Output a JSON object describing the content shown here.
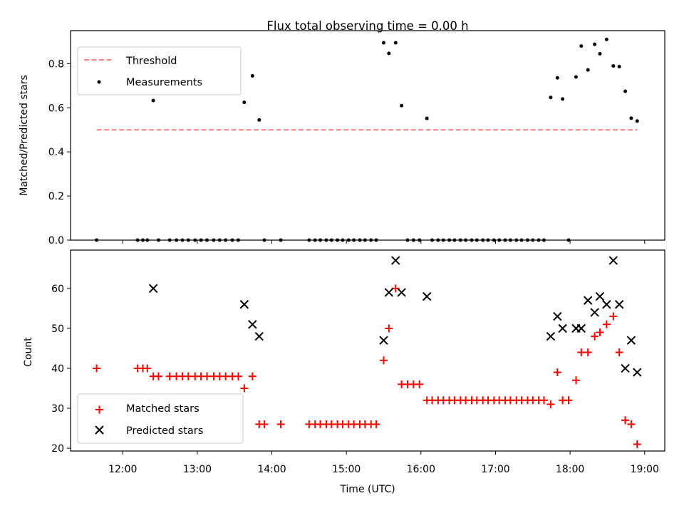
{
  "chart_data": [
    {
      "type": "scatter",
      "title": "Flux total observing time = 0.00 h",
      "ylabel": "Matched/Predicted stars",
      "xlabel": "",
      "xlim": [
        11.3,
        19.27
      ],
      "ylim": [
        0.0,
        0.95
      ],
      "yticks": [
        0.0,
        0.2,
        0.4,
        0.6,
        0.8
      ],
      "ytick_labels": [
        "0.0",
        "0.2",
        "0.4",
        "0.6",
        "0.8"
      ],
      "grid": false,
      "legend": "top-left",
      "threshold": {
        "name": "Threshold",
        "value": 0.5,
        "x": [
          11.65,
          18.9
        ],
        "color": "#ff7f7f"
      },
      "series": [
        {
          "name": "Measurements",
          "color": "#000000",
          "points": [
            [
              11.65,
              0
            ],
            [
              12.2,
              0
            ],
            [
              12.27,
              0
            ],
            [
              12.33,
              0
            ],
            [
              12.41,
              0.633
            ],
            [
              12.48,
              0
            ],
            [
              12.63,
              0
            ],
            [
              12.72,
              0
            ],
            [
              12.8,
              0
            ],
            [
              12.88,
              0
            ],
            [
              12.97,
              0
            ],
            [
              13.05,
              0
            ],
            [
              13.13,
              0
            ],
            [
              13.22,
              0
            ],
            [
              13.3,
              0
            ],
            [
              13.38,
              0
            ],
            [
              13.47,
              0
            ],
            [
              13.55,
              0
            ],
            [
              13.63,
              0.625
            ],
            [
              13.74,
              0.745
            ],
            [
              13.83,
              0.545
            ],
            [
              13.9,
              0
            ],
            [
              14.12,
              0
            ],
            [
              14.5,
              0
            ],
            [
              14.58,
              0
            ],
            [
              14.65,
              0
            ],
            [
              14.73,
              0
            ],
            [
              14.8,
              0
            ],
            [
              14.88,
              0
            ],
            [
              14.95,
              0
            ],
            [
              15.03,
              0
            ],
            [
              15.1,
              0
            ],
            [
              15.18,
              0
            ],
            [
              15.25,
              0
            ],
            [
              15.33,
              0
            ],
            [
              15.4,
              0
            ],
            [
              15.5,
              0.895
            ],
            [
              15.57,
              0.847
            ],
            [
              15.66,
              0.895
            ],
            [
              15.74,
              0.61
            ],
            [
              15.82,
              0
            ],
            [
              15.9,
              0
            ],
            [
              15.98,
              0
            ],
            [
              16.08,
              0.552
            ],
            [
              16.15,
              0
            ],
            [
              16.23,
              0
            ],
            [
              16.3,
              0
            ],
            [
              16.38,
              0
            ],
            [
              16.45,
              0
            ],
            [
              16.53,
              0
            ],
            [
              16.6,
              0
            ],
            [
              16.68,
              0
            ],
            [
              16.75,
              0
            ],
            [
              16.83,
              0
            ],
            [
              16.9,
              0
            ],
            [
              16.98,
              0
            ],
            [
              17.05,
              0
            ],
            [
              17.13,
              0
            ],
            [
              17.2,
              0
            ],
            [
              17.28,
              0
            ],
            [
              17.35,
              0
            ],
            [
              17.43,
              0
            ],
            [
              17.5,
              0
            ],
            [
              17.58,
              0
            ],
            [
              17.65,
              0
            ],
            [
              17.74,
              0.647
            ],
            [
              17.83,
              0.736
            ],
            [
              17.9,
              0.64
            ],
            [
              17.98,
              0
            ],
            [
              18.08,
              0.74
            ],
            [
              18.15,
              0.88
            ],
            [
              18.24,
              0.772
            ],
            [
              18.33,
              0.888
            ],
            [
              18.4,
              0.845
            ],
            [
              18.49,
              0.91
            ],
            [
              18.58,
              0.79
            ],
            [
              18.66,
              0.787
            ],
            [
              18.74,
              0.675
            ],
            [
              18.82,
              0.553
            ],
            [
              18.9,
              0.54
            ]
          ]
        }
      ]
    },
    {
      "type": "scatter",
      "title": "",
      "ylabel": "Count",
      "xlabel": "Time (UTC)",
      "xlim": [
        11.3,
        19.27
      ],
      "ylim": [
        19.3,
        69.6
      ],
      "yticks": [
        20,
        30,
        40,
        50,
        60
      ],
      "ytick_labels": [
        "20",
        "30",
        "40",
        "50",
        "60"
      ],
      "xticks": [
        12,
        13,
        14,
        15,
        16,
        17,
        18,
        19
      ],
      "xtick_labels": [
        "12:00",
        "13:00",
        "14:00",
        "15:00",
        "16:00",
        "17:00",
        "18:00",
        "19:00"
      ],
      "grid": false,
      "legend": "bottom-left",
      "series": [
        {
          "name": "Matched stars",
          "color": "#ff0000",
          "marker": "plus",
          "points": [
            [
              11.65,
              40
            ],
            [
              12.2,
              40
            ],
            [
              12.27,
              40
            ],
            [
              12.33,
              40
            ],
            [
              12.41,
              38
            ],
            [
              12.48,
              38
            ],
            [
              12.63,
              38
            ],
            [
              12.72,
              38
            ],
            [
              12.8,
              38
            ],
            [
              12.88,
              38
            ],
            [
              12.97,
              38
            ],
            [
              13.05,
              38
            ],
            [
              13.13,
              38
            ],
            [
              13.22,
              38
            ],
            [
              13.3,
              38
            ],
            [
              13.38,
              38
            ],
            [
              13.47,
              38
            ],
            [
              13.55,
              38
            ],
            [
              13.63,
              35
            ],
            [
              13.74,
              38
            ],
            [
              13.83,
              26
            ],
            [
              13.9,
              26
            ],
            [
              14.12,
              26
            ],
            [
              14.5,
              26
            ],
            [
              14.58,
              26
            ],
            [
              14.65,
              26
            ],
            [
              14.73,
              26
            ],
            [
              14.8,
              26
            ],
            [
              14.88,
              26
            ],
            [
              14.95,
              26
            ],
            [
              15.03,
              26
            ],
            [
              15.1,
              26
            ],
            [
              15.18,
              26
            ],
            [
              15.25,
              26
            ],
            [
              15.33,
              26
            ],
            [
              15.4,
              26
            ],
            [
              15.5,
              42
            ],
            [
              15.57,
              50
            ],
            [
              15.66,
              60
            ],
            [
              15.74,
              36
            ],
            [
              15.82,
              36
            ],
            [
              15.9,
              36
            ],
            [
              15.98,
              36
            ],
            [
              16.08,
              32
            ],
            [
              16.15,
              32
            ],
            [
              16.23,
              32
            ],
            [
              16.3,
              32
            ],
            [
              16.38,
              32
            ],
            [
              16.45,
              32
            ],
            [
              16.53,
              32
            ],
            [
              16.6,
              32
            ],
            [
              16.68,
              32
            ],
            [
              16.75,
              32
            ],
            [
              16.83,
              32
            ],
            [
              16.9,
              32
            ],
            [
              16.98,
              32
            ],
            [
              17.05,
              32
            ],
            [
              17.13,
              32
            ],
            [
              17.2,
              32
            ],
            [
              17.28,
              32
            ],
            [
              17.35,
              32
            ],
            [
              17.43,
              32
            ],
            [
              17.5,
              32
            ],
            [
              17.58,
              32
            ],
            [
              17.65,
              32
            ],
            [
              17.74,
              31
            ],
            [
              17.83,
              39
            ],
            [
              17.9,
              32
            ],
            [
              17.98,
              32
            ],
            [
              18.08,
              37
            ],
            [
              18.15,
              44
            ],
            [
              18.24,
              44
            ],
            [
              18.33,
              48
            ],
            [
              18.4,
              49
            ],
            [
              18.49,
              51
            ],
            [
              18.58,
              53
            ],
            [
              18.66,
              44
            ],
            [
              18.74,
              27
            ],
            [
              18.82,
              26
            ],
            [
              18.9,
              21
            ]
          ]
        },
        {
          "name": "Predicted stars",
          "color": "#000000",
          "marker": "x",
          "points": [
            [
              12.41,
              60
            ],
            [
              13.63,
              56
            ],
            [
              13.74,
              51
            ],
            [
              13.83,
              48
            ],
            [
              15.5,
              47
            ],
            [
              15.57,
              59
            ],
            [
              15.66,
              67
            ],
            [
              15.74,
              59
            ],
            [
              16.08,
              58
            ],
            [
              17.74,
              48
            ],
            [
              17.83,
              53
            ],
            [
              17.9,
              50
            ],
            [
              18.08,
              50
            ],
            [
              18.15,
              50
            ],
            [
              18.24,
              57
            ],
            [
              18.33,
              54
            ],
            [
              18.4,
              58
            ],
            [
              18.49,
              56
            ],
            [
              18.58,
              67
            ],
            [
              18.66,
              56
            ],
            [
              18.74,
              40
            ],
            [
              18.82,
              47
            ],
            [
              18.9,
              39
            ]
          ]
        }
      ]
    }
  ]
}
